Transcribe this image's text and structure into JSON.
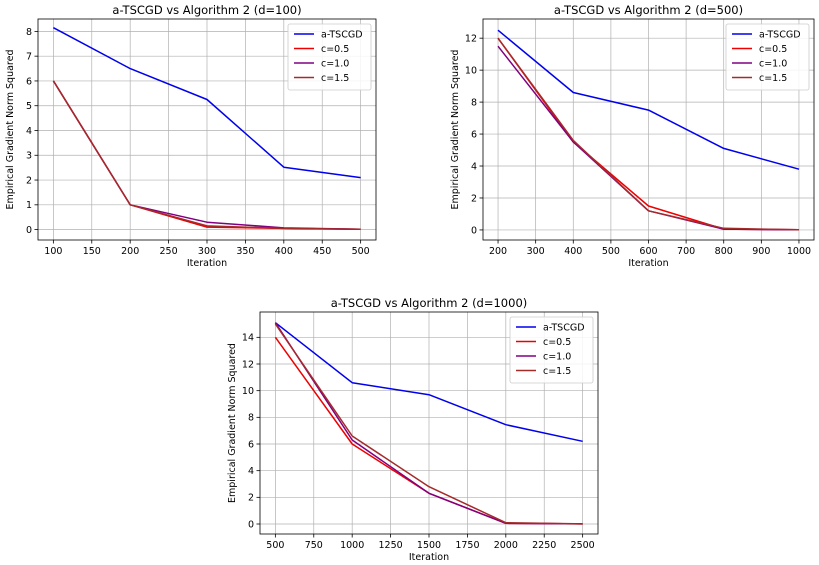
{
  "chart_data": [
    {
      "type": "line",
      "title": "a-TSCGD vs Algorithm 2 (d=100)",
      "xlabel": "Iteration",
      "ylabel": "Empirical Gradient Norm Squared",
      "xlim": [
        80,
        520
      ],
      "ylim": [
        -0.42,
        8.5
      ],
      "xticks": [
        100,
        150,
        200,
        250,
        300,
        350,
        400,
        450,
        500
      ],
      "yticks": [
        0,
        1,
        2,
        3,
        4,
        5,
        6,
        7,
        8
      ],
      "grid": true,
      "legend_position": "top-right",
      "x": [
        100,
        200,
        300,
        400,
        500
      ],
      "series": [
        {
          "name": "a-TSCGD",
          "color": "#0000ee",
          "values": [
            8.15,
            6.5,
            5.25,
            2.52,
            2.1
          ]
        },
        {
          "name": "c=0.5",
          "color": "#ee0000",
          "values": [
            6.0,
            1.0,
            0.1,
            0.05,
            0.01
          ]
        },
        {
          "name": "c=1.0",
          "color": "#800080",
          "values": [
            6.0,
            1.0,
            0.3,
            0.07,
            0.01
          ]
        },
        {
          "name": "c=1.5",
          "color": "#a52a2a",
          "values": [
            6.0,
            1.0,
            0.15,
            0.05,
            0.01
          ]
        }
      ]
    },
    {
      "type": "line",
      "title": "a-TSCGD vs Algorithm 2 (d=500)",
      "xlabel": "Iteration",
      "ylabel": "Empirical Gradient Norm Squared",
      "xlim": [
        160,
        1040
      ],
      "ylim": [
        -0.63,
        13.2
      ],
      "xticks": [
        200,
        300,
        400,
        500,
        600,
        700,
        800,
        900,
        1000
      ],
      "yticks": [
        0,
        2,
        4,
        6,
        8,
        10,
        12
      ],
      "grid": true,
      "legend_position": "top-right",
      "x": [
        200,
        400,
        600,
        800,
        1000
      ],
      "series": [
        {
          "name": "a-TSCGD",
          "color": "#0000ee",
          "values": [
            12.5,
            8.6,
            7.5,
            5.1,
            3.8
          ]
        },
        {
          "name": "c=0.5",
          "color": "#ee0000",
          "values": [
            12.0,
            5.5,
            1.5,
            0.05,
            0.01
          ]
        },
        {
          "name": "c=1.0",
          "color": "#800080",
          "values": [
            11.5,
            5.5,
            1.2,
            0.05,
            0.01
          ]
        },
        {
          "name": "c=1.5",
          "color": "#a52a2a",
          "values": [
            12.0,
            5.6,
            1.2,
            0.1,
            0.01
          ]
        }
      ]
    },
    {
      "type": "line",
      "title": "a-TSCGD vs Algorithm 2 (d=1000)",
      "xlabel": "Iteration",
      "ylabel": "Empirical Gradient Norm Squared",
      "xlim": [
        400,
        2600
      ],
      "ylim": [
        -0.75,
        15.9
      ],
      "xticks": [
        500,
        750,
        1000,
        1250,
        1500,
        1750,
        2000,
        2250,
        2500
      ],
      "yticks": [
        0,
        2,
        4,
        6,
        8,
        10,
        12,
        14
      ],
      "grid": true,
      "legend_position": "top-right",
      "x": [
        500,
        1000,
        1500,
        2000,
        2500
      ],
      "series": [
        {
          "name": "a-TSCGD",
          "color": "#0000ee",
          "values": [
            15.1,
            10.6,
            9.7,
            7.45,
            6.2
          ]
        },
        {
          "name": "c=0.5",
          "color": "#ee0000",
          "values": [
            14.0,
            6.0,
            2.3,
            0.05,
            0.01
          ]
        },
        {
          "name": "c=1.0",
          "color": "#800080",
          "values": [
            15.1,
            6.3,
            2.3,
            0.05,
            0.01
          ]
        },
        {
          "name": "c=1.5",
          "color": "#a52a2a",
          "values": [
            15.0,
            6.6,
            2.8,
            0.1,
            0.01
          ]
        }
      ]
    }
  ]
}
